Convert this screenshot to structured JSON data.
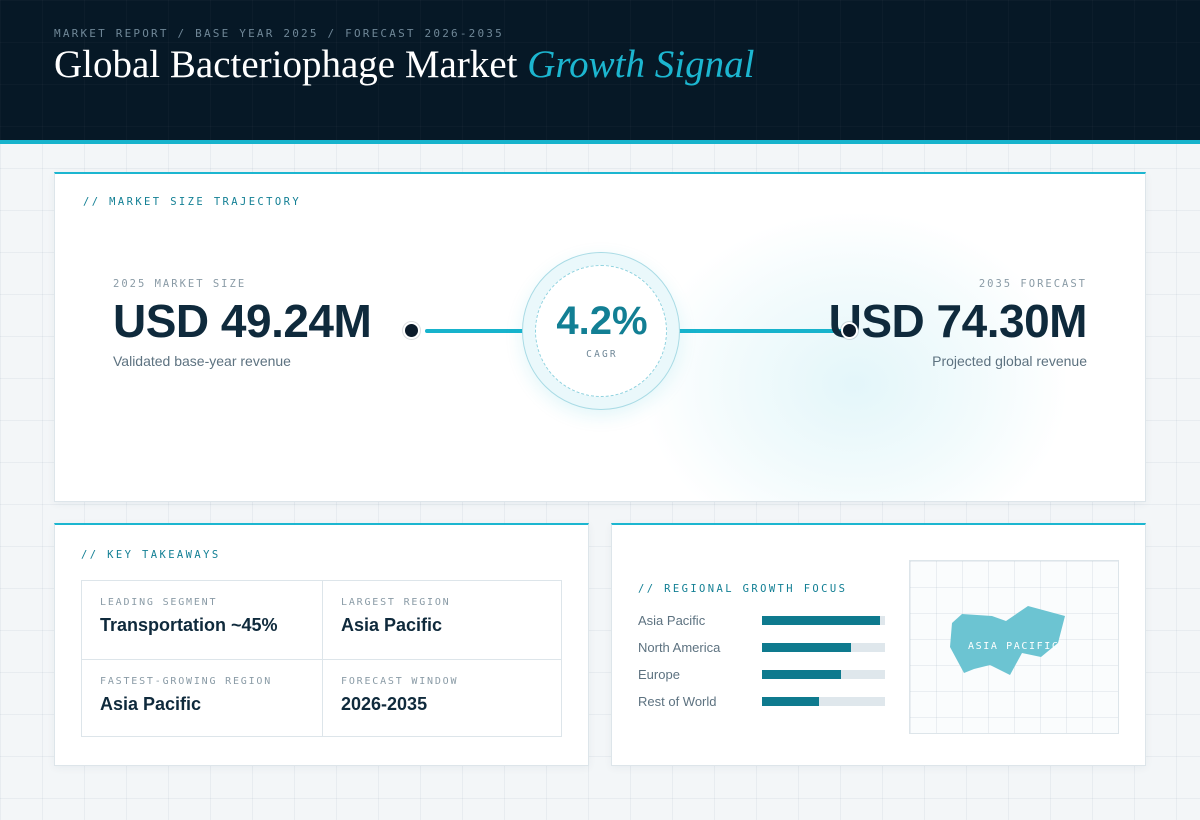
{
  "header": {
    "kicker": "MARKET REPORT / BASE YEAR 2025 / FORECAST 2026-2035",
    "title_main": "Global Bacteriophage Market",
    "title_accent": "Growth Signal"
  },
  "trajectory": {
    "section_label": "// MARKET SIZE TRAJECTORY",
    "base": {
      "label": "2025 MARKET SIZE",
      "value": "USD 49.24M",
      "sub": "Validated base-year revenue"
    },
    "forecast": {
      "label": "2035 FORECAST",
      "value": "USD 74.30M",
      "sub": "Projected global revenue"
    },
    "cagr": {
      "value": "4.2%",
      "label": "CAGR"
    }
  },
  "takeaways": {
    "section_label": "// KEY TAKEAWAYS",
    "items": [
      {
        "label": "LEADING SEGMENT",
        "value": "Transportation ~45%"
      },
      {
        "label": "LARGEST REGION",
        "value": "Asia Pacific"
      },
      {
        "label": "FASTEST-GROWING REGION",
        "value": "Asia Pacific"
      },
      {
        "label": "FORECAST WINDOW",
        "value": "2026-2035"
      }
    ]
  },
  "regional": {
    "section_label": "// REGIONAL GROWTH FOCUS",
    "bars": [
      {
        "name": "Asia Pacific",
        "level": 0.96
      },
      {
        "name": "North America",
        "level": 0.72
      },
      {
        "name": "Europe",
        "level": 0.64
      },
      {
        "name": "Rest of World",
        "level": 0.46
      }
    ],
    "map_label": "ASIA PACIFIC"
  },
  "colors": {
    "accent": "#1cb6d0",
    "dark": "#061826",
    "bar_fill": "#0e7a8e",
    "map_shape": "#6cc4d2"
  }
}
